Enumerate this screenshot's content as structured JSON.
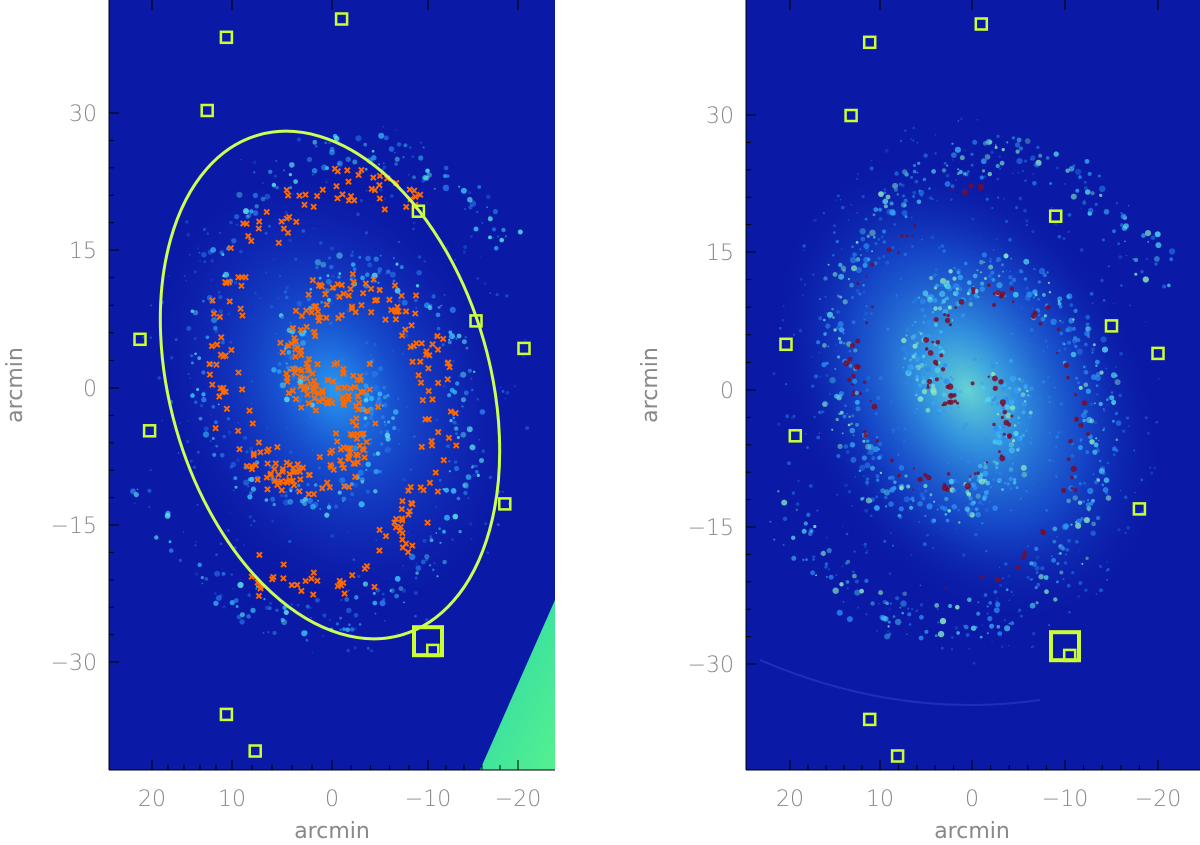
{
  "panels": [
    {
      "id": "left",
      "xlabel": "arcmin",
      "ylabel": "arcmin",
      "x_ticks": [
        "20",
        "10",
        "0",
        "−10",
        "−20"
      ],
      "y_ticks": [
        "30",
        "15",
        "0",
        "−15",
        "−30"
      ],
      "xlim": [
        25,
        -24
      ],
      "ylim": [
        -42,
        42
      ],
      "features": {
        "ellipse": true,
        "orange_crosses": true,
        "cyan_corner_wedge": true
      }
    },
    {
      "id": "right",
      "xlabel": "arcmin",
      "ylabel": "arcmin",
      "x_ticks": [
        "20",
        "10",
        "0",
        "−10",
        "−20"
      ],
      "y_ticks": [
        "30",
        "15",
        "0",
        "−15",
        "−30"
      ],
      "xlim": [
        25,
        -25
      ],
      "ylim": [
        -42,
        42
      ],
      "features": {
        "ellipse": false,
        "orange_crosses": false,
        "cyan_corner_wedge": false
      }
    }
  ],
  "markers_arcmin": [
    {
      "x": -1,
      "y": 40,
      "big": false
    },
    {
      "x": 11,
      "y": 38,
      "big": false
    },
    {
      "x": 13,
      "y": 30,
      "big": false
    },
    {
      "x": -9,
      "y": 19,
      "big": false
    },
    {
      "x": -15,
      "y": 7,
      "big": false
    },
    {
      "x": 20,
      "y": 5,
      "big": false
    },
    {
      "x": -20,
      "y": 4,
      "big": false
    },
    {
      "x": 19,
      "y": -5,
      "big": false
    },
    {
      "x": -18,
      "y": -13,
      "big": false
    },
    {
      "x": -10,
      "y": -28,
      "big": true
    },
    {
      "x": -10.5,
      "y": -29,
      "big": false
    },
    {
      "x": 11,
      "y": -36,
      "big": false
    },
    {
      "x": 8,
      "y": -40,
      "big": false
    }
  ],
  "colors": {
    "background": "#0a1aa6",
    "marker": "#ccff33",
    "cross": "#ff6a00",
    "ellipse": "#ccff55",
    "wedge": "#3de8a0",
    "hot": "#7a0a2a"
  }
}
